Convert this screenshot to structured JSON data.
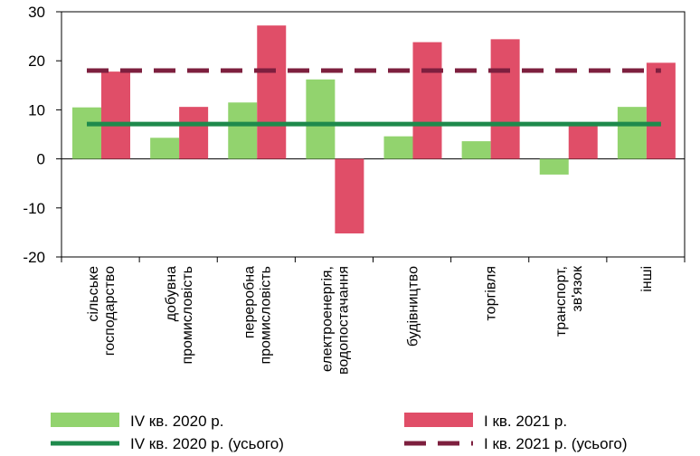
{
  "chart_data": {
    "type": "bar",
    "ylim": [
      -20,
      30
    ],
    "yticks": [
      -20,
      -10,
      0,
      10,
      20,
      30
    ],
    "categories": [
      [
        "сільське",
        "господарство"
      ],
      [
        "добувна",
        "промисловість"
      ],
      [
        "переробна",
        "промисловість"
      ],
      [
        "електроенергія,",
        "водопостачання"
      ],
      [
        "будівництво"
      ],
      [
        "торгівля"
      ],
      [
        "транспорт,",
        "зв'язок"
      ],
      [
        "інші"
      ]
    ],
    "series": [
      {
        "name": "IV кв. 2020 р.",
        "color": "#92d36e",
        "values": [
          10.5,
          4.3,
          11.5,
          16.2,
          4.6,
          3.6,
          -3.2,
          10.6
        ]
      },
      {
        "name": "I кв. 2021 р.",
        "color": "#e04e68",
        "values": [
          17.8,
          10.6,
          27.2,
          -15.2,
          23.8,
          24.4,
          7.4,
          19.6
        ]
      }
    ],
    "reference_lines": [
      {
        "name": "IV кв. 2020 р. (усього)",
        "value": 7.1,
        "color": "#1e8a4c",
        "style": "solid"
      },
      {
        "name": "I кв. 2021 р. (усього)",
        "value": 18.0,
        "color": "#7d1f3e",
        "style": "dashed"
      }
    ]
  }
}
